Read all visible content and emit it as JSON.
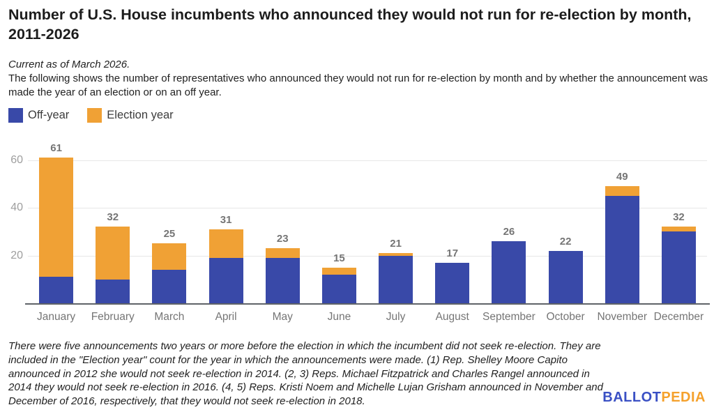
{
  "header": {
    "title": "Number of U.S. House incumbents who announced they would not run for re-election by month, 2011-2026",
    "current_note": "Current as of March 2026.",
    "description": "The following shows the number of representatives who announced they would not run for re-election by month and by whether the announcement was made the year of an election or on an off year."
  },
  "legend": {
    "items": [
      {
        "label": "Off-year",
        "color": "#3949a8"
      },
      {
        "label": "Election year",
        "color": "#f0a135"
      }
    ]
  },
  "chart_data": {
    "type": "bar",
    "stacked": true,
    "title": "Number of U.S. House incumbents who announced they would not run for re-election by month, 2011-2026",
    "categories": [
      "January",
      "February",
      "March",
      "April",
      "May",
      "June",
      "July",
      "August",
      "September",
      "October",
      "November",
      "December"
    ],
    "series": [
      {
        "name": "Off-year",
        "color": "#3949a8",
        "values": [
          11,
          10,
          14,
          19,
          19,
          12,
          20,
          17,
          26,
          22,
          45,
          30
        ]
      },
      {
        "name": "Election year",
        "color": "#f0a135",
        "values": [
          50,
          22,
          11,
          12,
          4,
          3,
          1,
          0,
          0,
          0,
          4,
          2
        ]
      }
    ],
    "totals": [
      61,
      32,
      25,
      31,
      23,
      15,
      21,
      17,
      26,
      22,
      49,
      32
    ],
    "xlabel": "",
    "ylabel": "",
    "y_ticks": [
      20,
      40,
      60
    ],
    "ylim": [
      0,
      66
    ],
    "grid": true,
    "legend_position": "top-left"
  },
  "footnote": "There were five announcements two years or more before the election in which the incumbent did not seek re-election. They are included in the \"Election year\" count for the year in which the announcements were made. (1) Rep. Shelley Moore Capito announced in 2012 she would not seek re-election in 2014. (2, 3) Reps. Michael Fitzpatrick and Charles Rangel announced in 2014 they would not seek re-election in 2016. (4, 5) Reps. Kristi Noem and Michelle Lujan Grisham announced in November and December of 2016, respectively, that they would not seek re-election in 2018.",
  "logo": {
    "part1": "BALLOT",
    "part2": "PEDIA"
  }
}
